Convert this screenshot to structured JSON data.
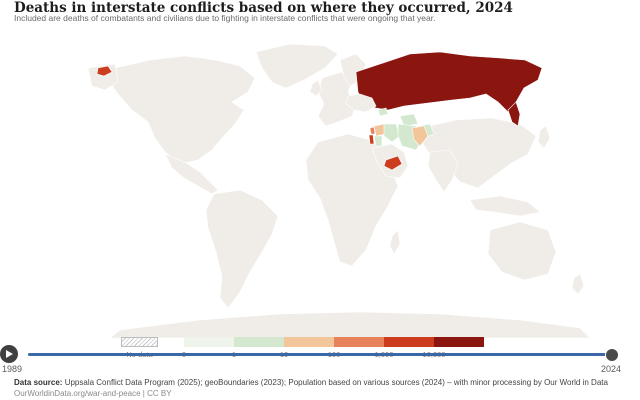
{
  "header": {
    "title": "Deaths in interstate conflicts based on where they occurred, 2024",
    "subtitle": "Included are deaths of combatants and civilians due to fighting in interstate conflicts that were ongoing that year."
  },
  "map": {
    "land_color": "#f0ede8",
    "countries": [
      {
        "name": "Russia",
        "bin": 5
      },
      {
        "name": "Ukraine",
        "bin": 6
      },
      {
        "name": "Israel",
        "bin": 4
      },
      {
        "name": "Yemen",
        "bin": 4
      },
      {
        "name": "Iran",
        "bin": 1
      },
      {
        "name": "Syria",
        "bin": 2
      },
      {
        "name": "Iraq",
        "bin": 1
      },
      {
        "name": "Afghanistan",
        "bin": 1
      },
      {
        "name": "Pakistan",
        "bin": 2
      },
      {
        "name": "Lebanon",
        "bin": 3
      },
      {
        "name": "Jordan",
        "bin": 1
      },
      {
        "name": "Georgia",
        "bin": 1
      },
      {
        "name": "Turkmenistan",
        "bin": 1
      },
      {
        "name": "Saudi Arabia",
        "bin": 0
      }
    ]
  },
  "legend": {
    "no_data_label": "No data",
    "bins": [
      {
        "color": "#eef4ea"
      },
      {
        "color": "#d3e8cf"
      },
      {
        "color": "#f3c59a"
      },
      {
        "color": "#e8825a"
      },
      {
        "color": "#cc3d1f"
      },
      {
        "color": "#8b1610"
      }
    ],
    "ticks": [
      "0",
      "1",
      "10",
      "100",
      "1,000",
      "10,000"
    ]
  },
  "timeline": {
    "start_year": "1989",
    "end_year": "2024",
    "selected_year": "2024"
  },
  "footer": {
    "source_label": "Data source:",
    "source_text": "Uppsala Conflict Data Program (2025); geoBoundaries (2023); Population based on various sources (2024) – with minor processing by Our World in Data",
    "credit": "OurWorldinData.org/war-and-peace | CC BY"
  }
}
